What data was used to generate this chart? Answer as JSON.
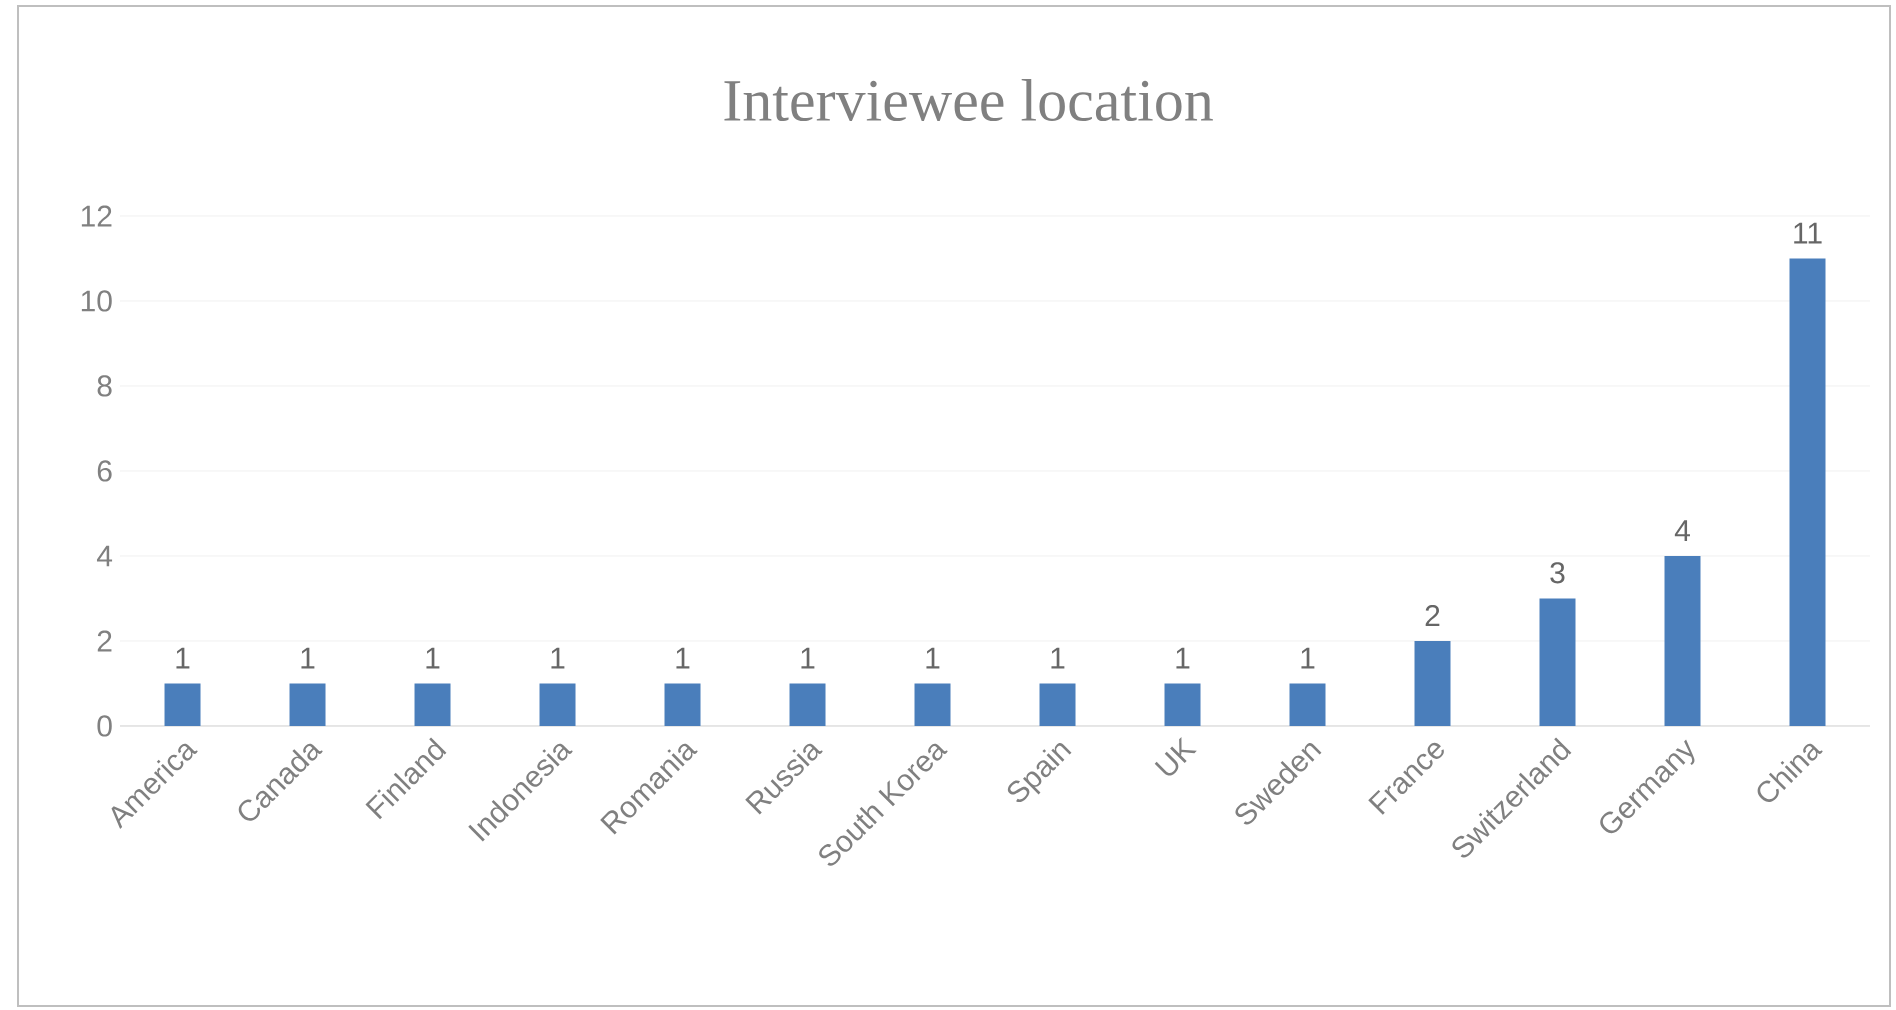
{
  "chart_data": {
    "type": "bar",
    "title": "Interviewee location",
    "categories": [
      "America",
      "Canada",
      "Finland",
      "Indonesia",
      "Romania",
      "Russia",
      "South Korea",
      "Spain",
      "UK",
      "Sweden",
      "France",
      "Switzerland",
      "Germany",
      "China"
    ],
    "values": [
      1,
      1,
      1,
      1,
      1,
      1,
      1,
      1,
      1,
      1,
      2,
      3,
      4,
      11
    ],
    "color": "#4a7ebb",
    "ylim": [
      0,
      12
    ],
    "yticks": [
      0,
      2,
      4,
      6,
      8,
      10,
      12
    ],
    "grid": "y",
    "data_labels": true
  }
}
